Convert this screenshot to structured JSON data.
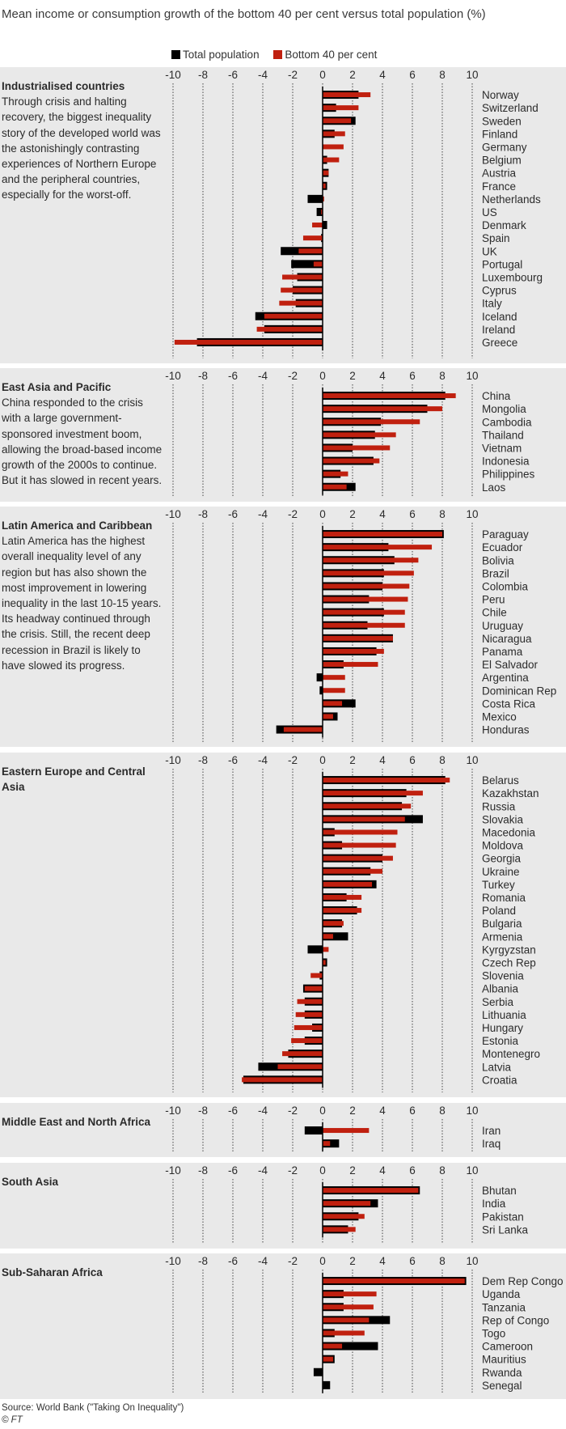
{
  "title": "Mean income or consumption growth of the bottom 40 per cent versus total population (%)",
  "legend": [
    {
      "label": "Total population",
      "color": "#000000"
    },
    {
      "label": "Bottom 40 per cent",
      "color": "#c0200f"
    }
  ],
  "source": "Source: World Bank (\"Taking On Inequality\")",
  "credit": "© FT",
  "chart_data": [
    {
      "type": "bar",
      "title": "Industrialised countries",
      "description": "Through crisis and halting recovery, the biggest inequality story of the developed world was the astonishingly contrasting experiences of Northern Europe and the peripheral countries, especially for the worst-off.",
      "xlim": [
        -10,
        10
      ],
      "ticks": [
        "-10",
        "-8",
        "-6",
        "-4",
        "-2",
        "0",
        "2",
        "4",
        "6",
        "8",
        "10"
      ],
      "categories": [
        "Norway",
        "Switzerland",
        "Sweden",
        "Finland",
        "Germany",
        "Belgium",
        "Austria",
        "France",
        "Netherlands",
        "US",
        "Denmark",
        "Spain",
        "UK",
        "Portugal",
        "Luxembourg",
        "Cyprus",
        "Italy",
        "Iceland",
        "Ireland",
        "Greece"
      ],
      "series": [
        {
          "name": "Total population",
          "values": [
            2.4,
            0.9,
            2.2,
            0.8,
            0.0,
            0.3,
            0.4,
            0.3,
            -1.0,
            -0.4,
            0.3,
            -0.1,
            -2.8,
            -2.1,
            -1.7,
            -2.0,
            -1.8,
            -4.5,
            -3.9,
            -8.4
          ]
        },
        {
          "name": "Bottom 40 per cent",
          "values": [
            3.2,
            2.4,
            1.9,
            1.5,
            1.4,
            1.1,
            0.4,
            0.2,
            0.1,
            -0.1,
            -0.7,
            -1.3,
            -1.6,
            -0.6,
            -2.7,
            -2.8,
            -2.9,
            -3.9,
            -4.4,
            -9.9
          ]
        }
      ]
    },
    {
      "type": "bar",
      "title": "East Asia and Pacific",
      "description": "China responded to the crisis with a large government-sponsored investment boom, allowing the broad-based income growth of the 2000s to continue. But it has slowed in recent years.",
      "xlim": [
        -10,
        10
      ],
      "ticks": [
        "-10",
        "-8",
        "-6",
        "-4",
        "-2",
        "0",
        "2",
        "4",
        "6",
        "8",
        "10"
      ],
      "categories": [
        "China",
        "Mongolia",
        "Cambodia",
        "Thailand",
        "Vietnam",
        "Indonesia",
        "Philippines",
        "Laos"
      ],
      "series": [
        {
          "name": "Total population",
          "values": [
            8.2,
            7.0,
            3.9,
            3.5,
            2.0,
            3.4,
            1.2,
            2.2
          ]
        },
        {
          "name": "Bottom 40 per cent",
          "values": [
            8.9,
            8.0,
            6.5,
            4.9,
            4.5,
            3.8,
            1.7,
            1.6
          ]
        }
      ]
    },
    {
      "type": "bar",
      "title": "Latin America and Caribbean",
      "description": "Latin America has the highest overall inequality level of any region but has also shown the most improvement in lowering inequality in the last 10-15 years. Its headway continued through the crisis. Still, the recent deep recession in Brazil is likely to have slowed its progress.",
      "xlim": [
        -10,
        10
      ],
      "ticks": [
        "-10",
        "-8",
        "-6",
        "-4",
        "-2",
        "0",
        "2",
        "4",
        "6",
        "8",
        "10"
      ],
      "categories": [
        "Paraguay",
        "Ecuador",
        "Bolivia",
        "Brazil",
        "Colombia",
        "Peru",
        "Chile",
        "Uruguay",
        "Nicaragua",
        "Panama",
        "El Salvador",
        "Argentina",
        "Dominican Rep",
        "Costa Rica",
        "Mexico",
        "Honduras"
      ],
      "series": [
        {
          "name": "Total population",
          "values": [
            8.1,
            4.4,
            4.8,
            4.1,
            4.0,
            3.1,
            4.1,
            3.0,
            4.7,
            3.6,
            1.4,
            -0.4,
            -0.2,
            2.2,
            1.0,
            -3.1
          ]
        },
        {
          "name": "Bottom 40 per cent",
          "values": [
            8.0,
            7.3,
            6.4,
            6.1,
            5.8,
            5.7,
            5.5,
            5.5,
            4.7,
            4.1,
            3.7,
            1.5,
            1.5,
            1.3,
            0.7,
            -2.6
          ]
        }
      ]
    },
    {
      "type": "bar",
      "title": "Eastern Europe and Central Asia",
      "description": "",
      "xlim": [
        -10,
        10
      ],
      "ticks": [
        "-10",
        "-8",
        "-6",
        "-4",
        "-2",
        "0",
        "2",
        "4",
        "6",
        "8",
        "10"
      ],
      "categories": [
        "Belarus",
        "Kazakhstan",
        "Russia",
        "Slovakia",
        "Macedonia",
        "Moldova",
        "Georgia",
        "Ukraine",
        "Turkey",
        "Romania",
        "Poland",
        "Bulgaria",
        "Armenia",
        "Kyrgyzstan",
        "Czech Rep",
        "Slovenia",
        "Albania",
        "Serbia",
        "Lithuania",
        "Hungary",
        "Estonia",
        "Montenegro",
        "Latvia",
        "Croatia"
      ],
      "series": [
        {
          "name": "Total population",
          "values": [
            8.2,
            5.6,
            5.3,
            6.7,
            0.8,
            1.3,
            4.0,
            3.2,
            3.6,
            1.6,
            2.3,
            1.3,
            1.7,
            -1.0,
            0.3,
            -0.2,
            -1.3,
            -1.2,
            -1.2,
            -0.7,
            -1.2,
            -2.3,
            -4.3,
            -5.3
          ]
        },
        {
          "name": "Bottom 40 per cent",
          "values": [
            8.5,
            6.7,
            5.9,
            5.5,
            5.0,
            4.9,
            4.7,
            4.0,
            3.3,
            2.6,
            2.6,
            1.4,
            0.7,
            0.4,
            0.2,
            -0.8,
            -1.2,
            -1.7,
            -1.8,
            -1.9,
            -2.1,
            -2.7,
            -3.0,
            -5.4
          ]
        }
      ]
    },
    {
      "type": "bar",
      "title": "Middle East and North Africa",
      "description": "",
      "xlim": [
        -10,
        10
      ],
      "ticks": [
        "-10",
        "-8",
        "-6",
        "-4",
        "-2",
        "0",
        "2",
        "4",
        "6",
        "8",
        "10"
      ],
      "categories": [
        "Iran",
        "Iraq"
      ],
      "series": [
        {
          "name": "Total population",
          "values": [
            -1.2,
            1.1
          ]
        },
        {
          "name": "Bottom 40 per cent",
          "values": [
            3.1,
            0.5
          ]
        }
      ]
    },
    {
      "type": "bar",
      "title": "South Asia",
      "description": "",
      "xlim": [
        -10,
        10
      ],
      "ticks": [
        "-10",
        "-8",
        "-6",
        "-4",
        "-2",
        "0",
        "2",
        "4",
        "6",
        "8",
        "10"
      ],
      "categories": [
        "Bhutan",
        "India",
        "Pakistan",
        "Sri Lanka"
      ],
      "series": [
        {
          "name": "Total population",
          "values": [
            6.5,
            3.7,
            2.4,
            1.7
          ]
        },
        {
          "name": "Bottom 40 per cent",
          "values": [
            6.4,
            3.2,
            2.8,
            2.2
          ]
        }
      ]
    },
    {
      "type": "bar",
      "title": "Sub-Saharan Africa",
      "description": "",
      "xlim": [
        -10,
        10
      ],
      "ticks": [
        "-10",
        "-8",
        "-6",
        "-4",
        "-2",
        "0",
        "2",
        "4",
        "6",
        "8",
        "10"
      ],
      "categories": [
        "Dem Rep Congo",
        "Uganda",
        "Tanzania",
        "Rep of Congo",
        "Togo",
        "Cameroon",
        "Mauritius",
        "Rwanda",
        "Senegal"
      ],
      "series": [
        {
          "name": "Total population",
          "values": [
            9.6,
            1.4,
            1.4,
            4.5,
            0.8,
            3.7,
            0.8,
            -0.6,
            0.5
          ]
        },
        {
          "name": "Bottom 40 per cent",
          "values": [
            9.5,
            3.6,
            3.4,
            3.1,
            2.8,
            1.3,
            0.7,
            0.0,
            0.0
          ]
        }
      ]
    }
  ]
}
